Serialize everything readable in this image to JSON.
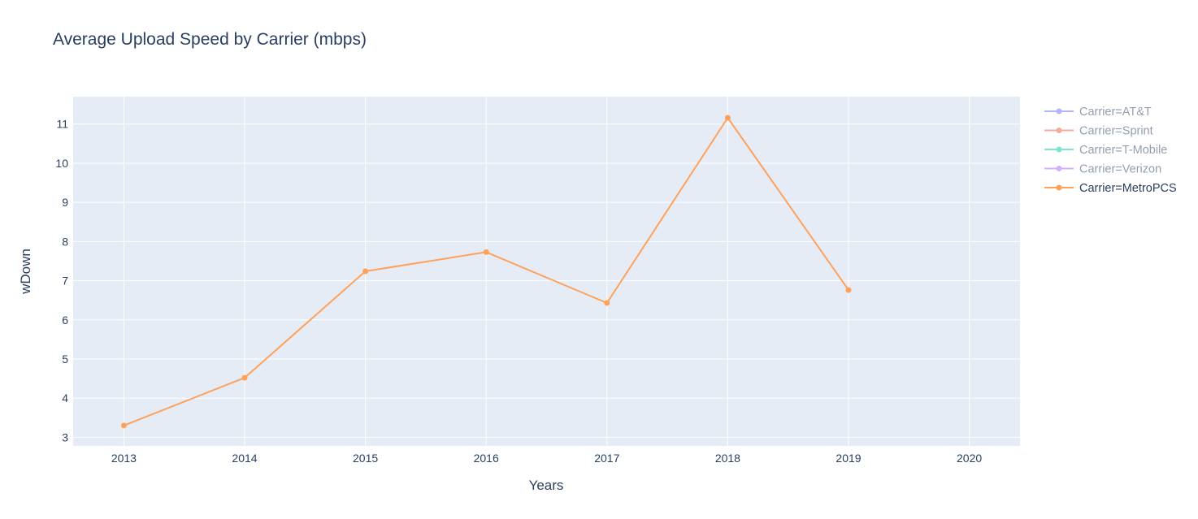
{
  "chart_data": {
    "type": "line",
    "title": "Average Upload Speed by Carrier (mbps)",
    "xlabel": "Years",
    "ylabel": "wDown",
    "x_ticks": [
      2013,
      2014,
      2015,
      2016,
      2017,
      2018,
      2019,
      2020
    ],
    "y_ticks": [
      3,
      4,
      5,
      6,
      7,
      8,
      9,
      10,
      11
    ],
    "xlim": [
      2012.58,
      2020.42
    ],
    "ylim": [
      2.78,
      11.7
    ],
    "grid": true,
    "legend_position": "right",
    "series": [
      {
        "name": "Carrier=AT&T",
        "color": "#636efa",
        "visible": false,
        "x": [],
        "y": []
      },
      {
        "name": "Carrier=Sprint",
        "color": "#ef553b",
        "visible": false,
        "x": [],
        "y": []
      },
      {
        "name": "Carrier=T-Mobile",
        "color": "#00cc96",
        "visible": false,
        "x": [],
        "y": []
      },
      {
        "name": "Carrier=Verizon",
        "color": "#ab63fa",
        "visible": false,
        "x": [],
        "y": []
      },
      {
        "name": "Carrier=MetroPCS",
        "color": "#ffa15a",
        "visible": true,
        "x": [
          2013,
          2014,
          2015,
          2016,
          2017,
          2018,
          2019
        ],
        "y": [
          3.3,
          4.52,
          7.24,
          7.73,
          6.43,
          11.16,
          6.76
        ]
      }
    ]
  }
}
